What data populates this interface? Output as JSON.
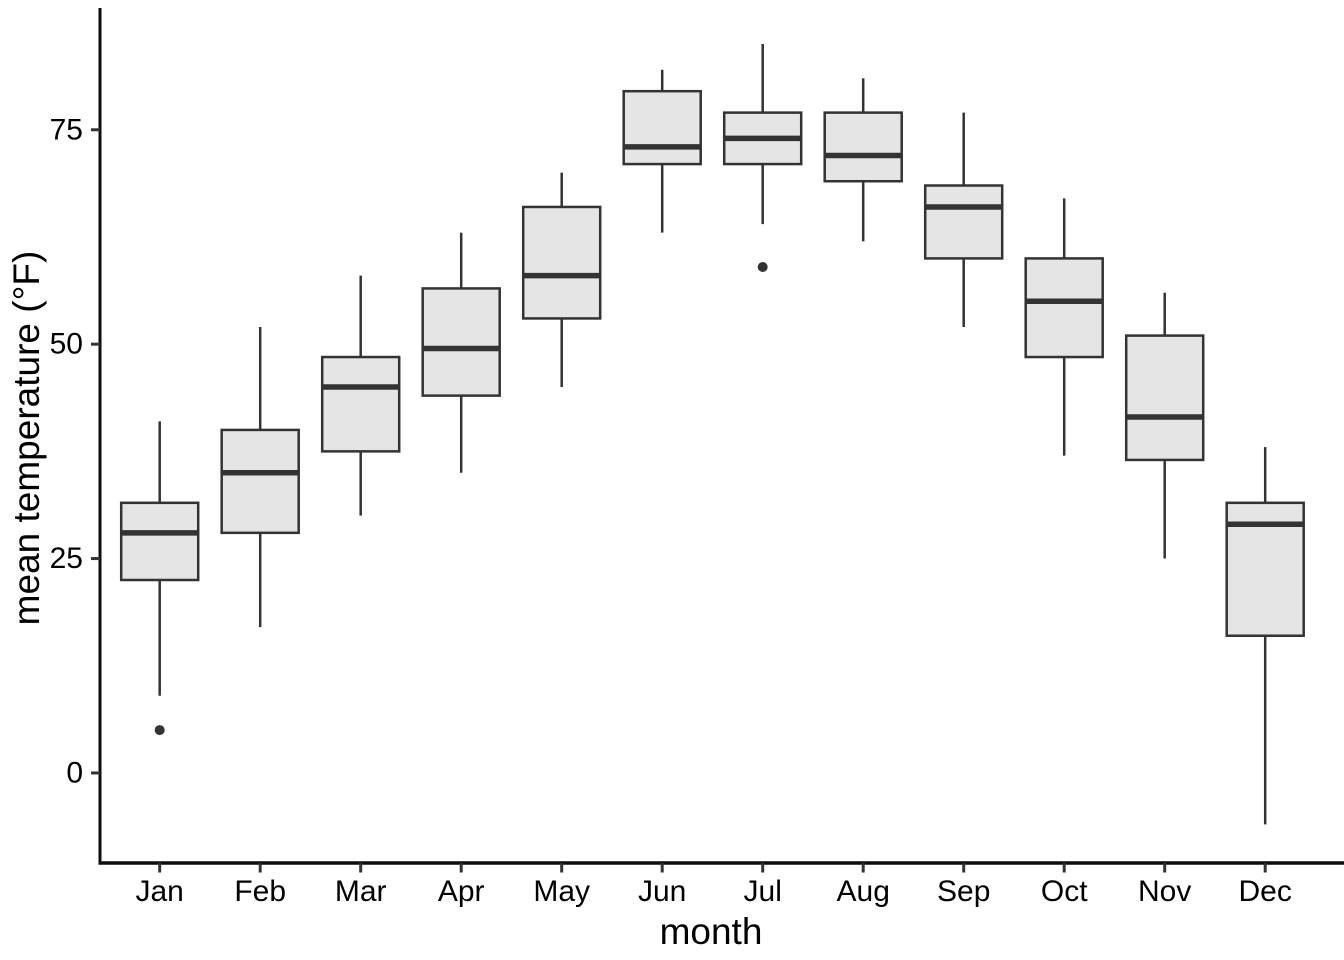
{
  "chart_data": {
    "type": "boxplot",
    "title": "",
    "xlabel": "month",
    "ylabel": "mean temperature (°F)",
    "categories": [
      "Jan",
      "Feb",
      "Mar",
      "Apr",
      "May",
      "Jun",
      "Jul",
      "Aug",
      "Sep",
      "Oct",
      "Nov",
      "Dec"
    ],
    "y_axis": {
      "ticks": [
        0,
        25,
        50,
        75
      ],
      "range": [
        -10.5,
        89.2
      ]
    },
    "grid": "off",
    "legend": "none",
    "boxes": [
      {
        "month": "Jan",
        "whisker_low": 9,
        "q1": 22.5,
        "median": 28,
        "q3": 31.5,
        "whisker_high": 41,
        "outliers": [
          5
        ]
      },
      {
        "month": "Feb",
        "whisker_low": 17,
        "q1": 28,
        "median": 35,
        "q3": 40,
        "whisker_high": 52,
        "outliers": []
      },
      {
        "month": "Mar",
        "whisker_low": 30,
        "q1": 37.5,
        "median": 45,
        "q3": 48.5,
        "whisker_high": 58,
        "outliers": []
      },
      {
        "month": "Apr",
        "whisker_low": 35,
        "q1": 44,
        "median": 49.5,
        "q3": 56.5,
        "whisker_high": 63,
        "outliers": []
      },
      {
        "month": "May",
        "whisker_low": 45,
        "q1": 53,
        "median": 58,
        "q3": 66,
        "whisker_high": 70,
        "outliers": []
      },
      {
        "month": "Jun",
        "whisker_low": 63,
        "q1": 71,
        "median": 73,
        "q3": 79.5,
        "whisker_high": 82,
        "outliers": []
      },
      {
        "month": "Jul",
        "whisker_low": 64,
        "q1": 71,
        "median": 74,
        "q3": 77,
        "whisker_high": 85,
        "outliers": [
          59
        ]
      },
      {
        "month": "Aug",
        "whisker_low": 62,
        "q1": 69,
        "median": 72,
        "q3": 77,
        "whisker_high": 81,
        "outliers": []
      },
      {
        "month": "Sep",
        "whisker_low": 52,
        "q1": 60,
        "median": 66,
        "q3": 68.5,
        "whisker_high": 77,
        "outliers": []
      },
      {
        "month": "Oct",
        "whisker_low": 37,
        "q1": 48.5,
        "median": 55,
        "q3": 60,
        "whisker_high": 67,
        "outliers": []
      },
      {
        "month": "Nov",
        "whisker_low": 25,
        "q1": 36.5,
        "median": 41.5,
        "q3": 51,
        "whisker_high": 56,
        "outliers": []
      },
      {
        "month": "Dec",
        "whisker_low": -6,
        "q1": 16,
        "median": 29,
        "q3": 31.5,
        "whisker_high": 38,
        "outliers": []
      }
    ],
    "colors": {
      "box_fill": "#e5e5e5",
      "box_border": "#333333",
      "median": "#333333",
      "whisker": "#333333",
      "outlier": "#333333",
      "axis_line": "#0d0d0d",
      "tick": "#333333",
      "text": "#000000"
    }
  }
}
